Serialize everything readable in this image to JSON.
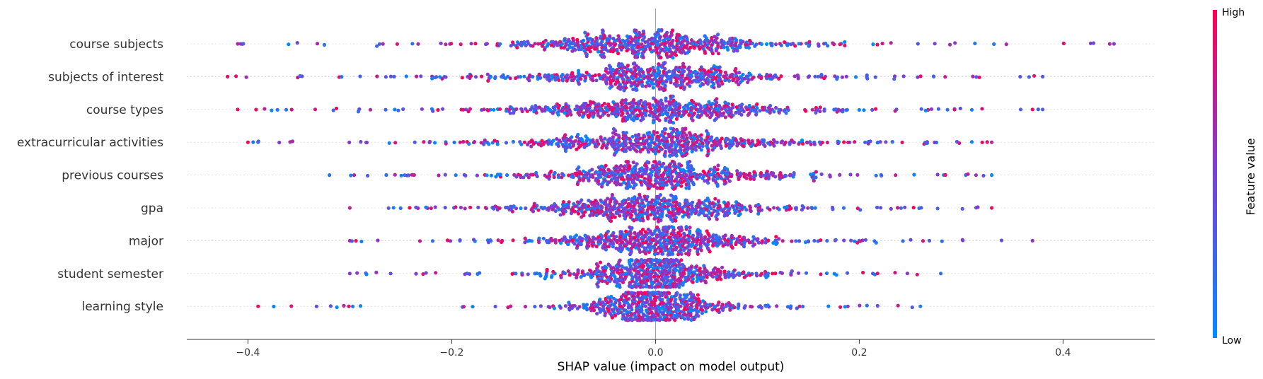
{
  "chart_data": {
    "type": "scatter",
    "subtype": "shap-beeswarm",
    "title": "",
    "xlabel": "SHAP value (impact on model output)",
    "ylabel": "",
    "xlim": [
      -0.46,
      0.49
    ],
    "xticks": [
      -0.4,
      -0.2,
      0.0,
      0.2,
      0.4
    ],
    "xtick_labels": [
      "−0.4",
      "−0.2",
      "0.0",
      "0.2",
      "0.4"
    ],
    "grid": false,
    "colorbar": {
      "title": "Feature value",
      "high_label": "High",
      "low_label": "Low",
      "low_color": "#008bfb",
      "high_color": "#ff0052",
      "mid_color": "#7b3fd8",
      "placement": "right"
    },
    "features": [
      {
        "name": "course subjects",
        "spread": 0.11,
        "min": -0.41,
        "max": 0.45
      },
      {
        "name": "subjects of interest",
        "spread": 0.11,
        "min": -0.42,
        "max": 0.38
      },
      {
        "name": "course types",
        "spread": 0.12,
        "min": -0.41,
        "max": 0.38
      },
      {
        "name": "extracurricular activities",
        "spread": 0.11,
        "min": -0.4,
        "max": 0.33
      },
      {
        "name": "previous courses",
        "spread": 0.1,
        "min": -0.32,
        "max": 0.33
      },
      {
        "name": "gpa",
        "spread": 0.1,
        "min": -0.3,
        "max": 0.33
      },
      {
        "name": "major",
        "spread": 0.09,
        "min": -0.3,
        "max": 0.37
      },
      {
        "name": "student semester",
        "spread": 0.07,
        "min": -0.3,
        "max": 0.28
      },
      {
        "name": "learning style",
        "spread": 0.06,
        "min": -0.39,
        "max": 0.26
      }
    ]
  }
}
